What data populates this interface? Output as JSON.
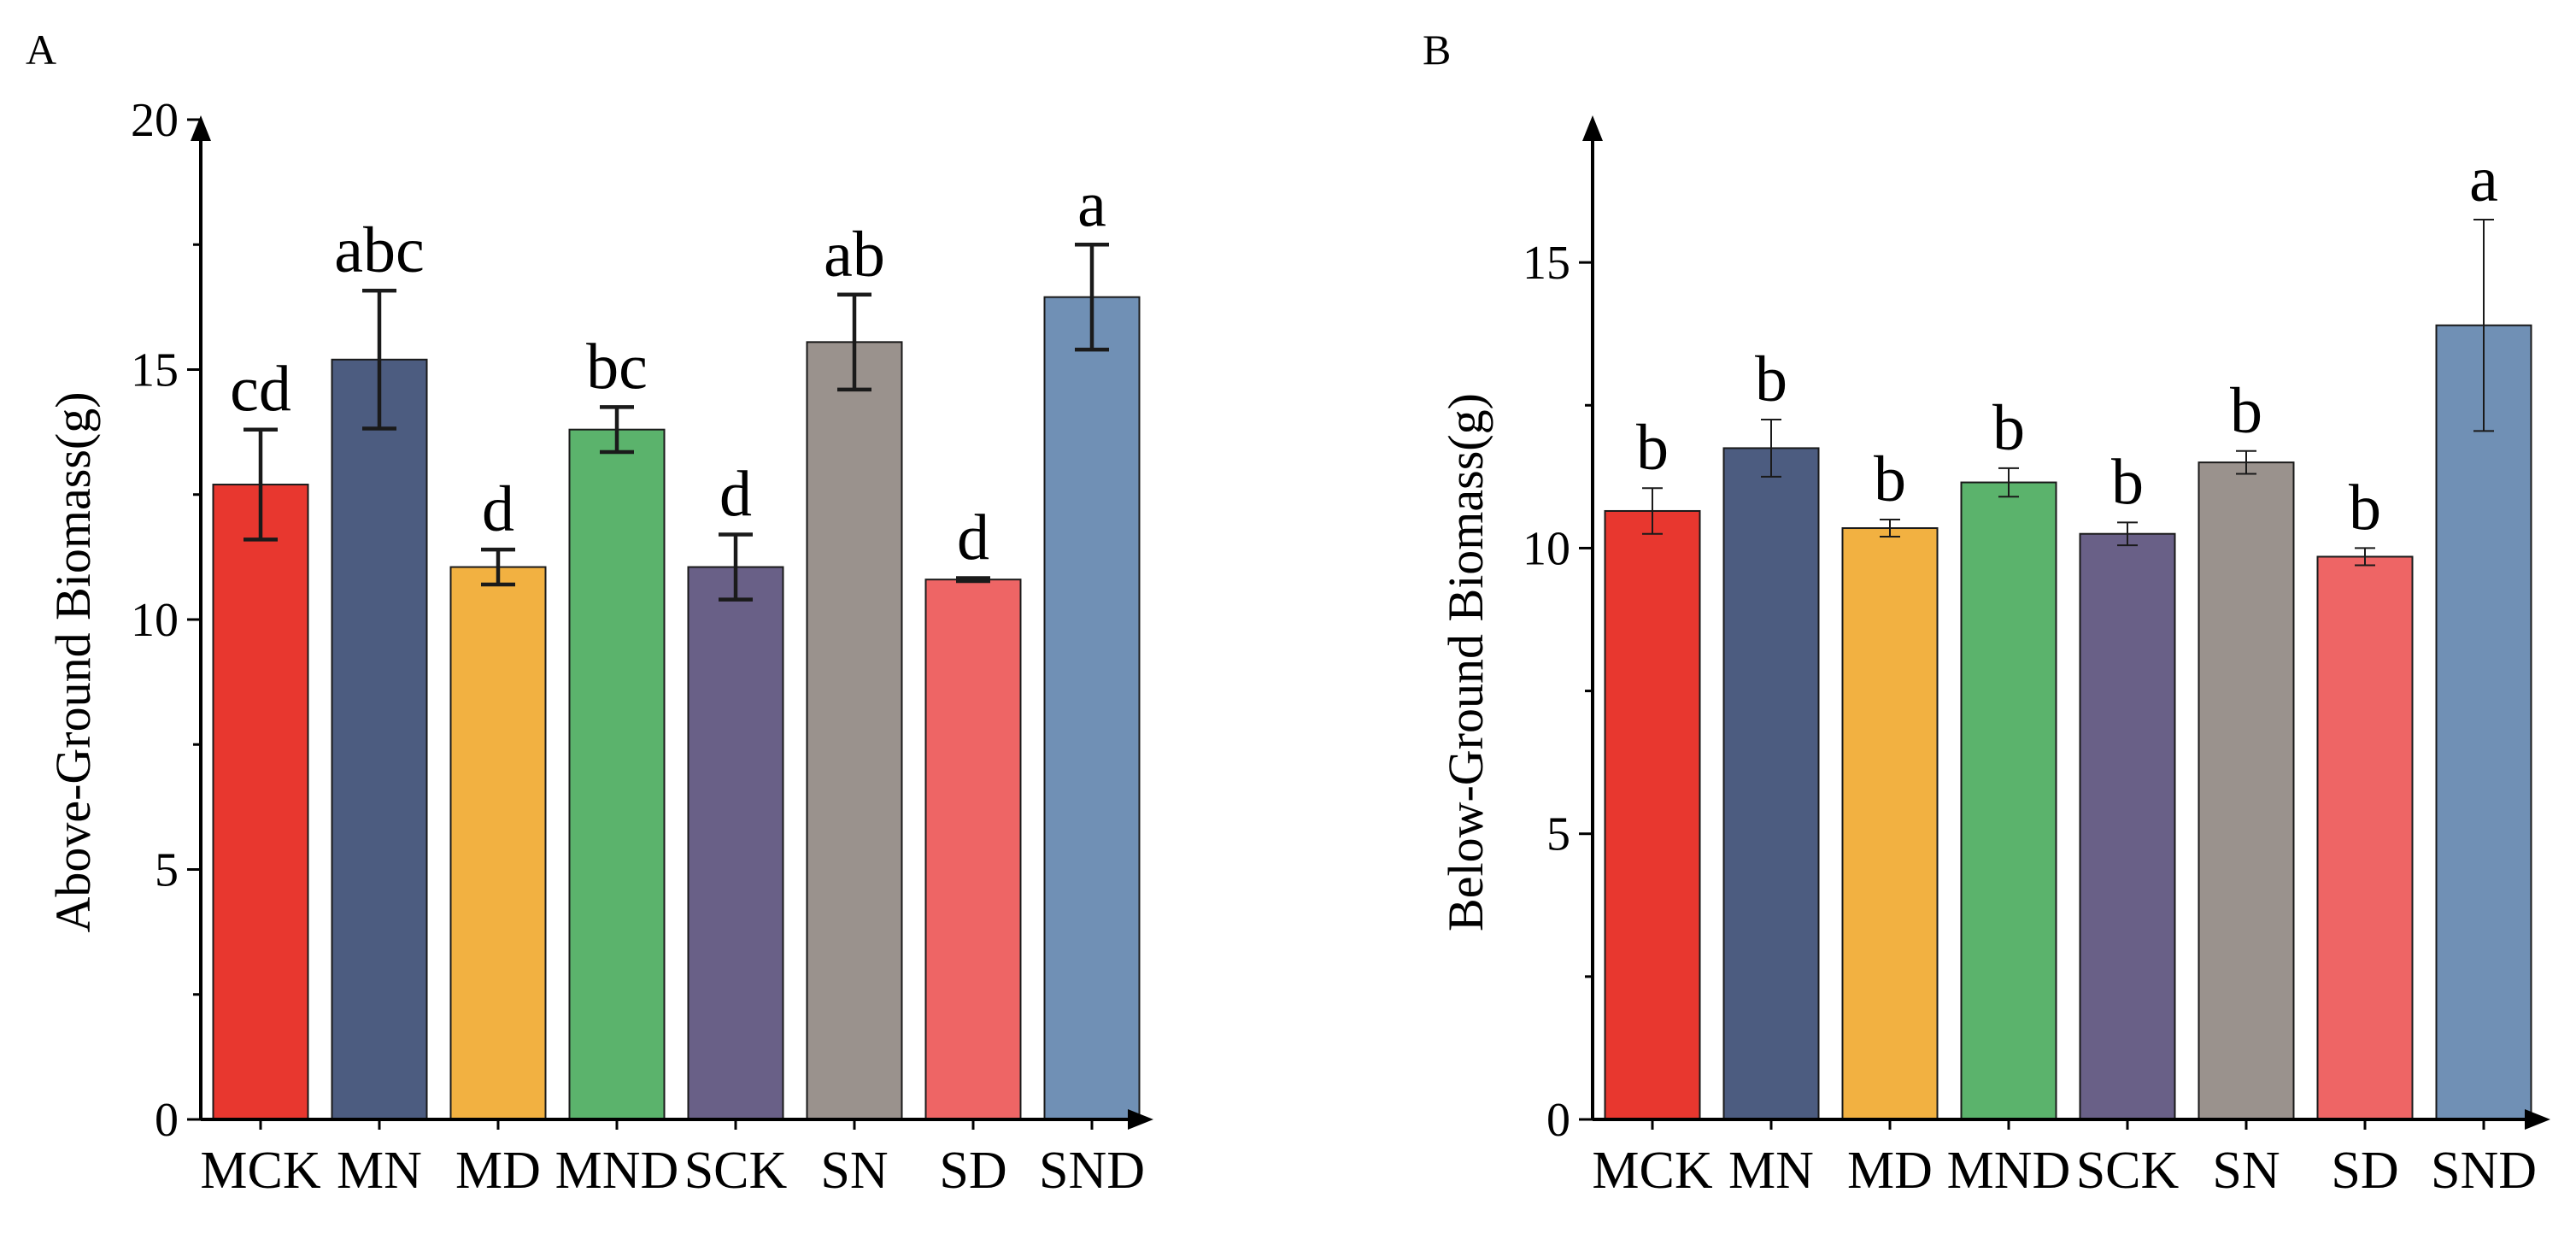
{
  "chart_data": [
    {
      "type": "bar",
      "panel_label": "A",
      "ylabel": "Above-Ground Biomass(g)",
      "xlabel": "",
      "ylim": [
        0,
        20
      ],
      "yticks": [
        "0",
        "5",
        "10",
        "15",
        "20"
      ],
      "categories": [
        "MCK",
        "MN",
        "MD",
        "MND",
        "SCK",
        "SN",
        "SD",
        "SND"
      ],
      "values": [
        12.7,
        15.2,
        11.05,
        13.8,
        11.05,
        15.55,
        10.8,
        16.45
      ],
      "errors": [
        1.1,
        1.38,
        0.35,
        0.45,
        0.65,
        0.95,
        0.03,
        1.05
      ],
      "significance": [
        "cd",
        "abc",
        "d",
        "bc",
        "d",
        "ab",
        "d",
        "a"
      ],
      "colors": [
        "#e8372f",
        "#4c5c80",
        "#f2b141",
        "#5bb36c",
        "#696087",
        "#9a928d",
        "#ee6565",
        "#7090b5"
      ],
      "grid": false
    },
    {
      "type": "bar",
      "panel_label": "B",
      "ylabel": "Below-Ground Biomass(g)",
      "xlabel": "",
      "ylim": [
        0,
        17.5
      ],
      "yticks": [
        "0",
        "5",
        "10",
        "15"
      ],
      "categories": [
        "MCK",
        "MN",
        "MD",
        "MND",
        "SCK",
        "SN",
        "SD",
        "SND"
      ],
      "values": [
        10.65,
        11.75,
        10.35,
        11.15,
        10.25,
        11.5,
        9.85,
        13.9
      ],
      "errors": [
        0.4,
        0.5,
        0.15,
        0.25,
        0.2,
        0.2,
        0.15,
        1.85
      ],
      "significance": [
        "b",
        "b",
        "b",
        "b",
        "b",
        "b",
        "b",
        "a"
      ],
      "colors": [
        "#e8372f",
        "#4c5c80",
        "#f2b141",
        "#5bb36c",
        "#696087",
        "#9a928d",
        "#ee6565",
        "#7090b5"
      ],
      "grid": false
    }
  ]
}
